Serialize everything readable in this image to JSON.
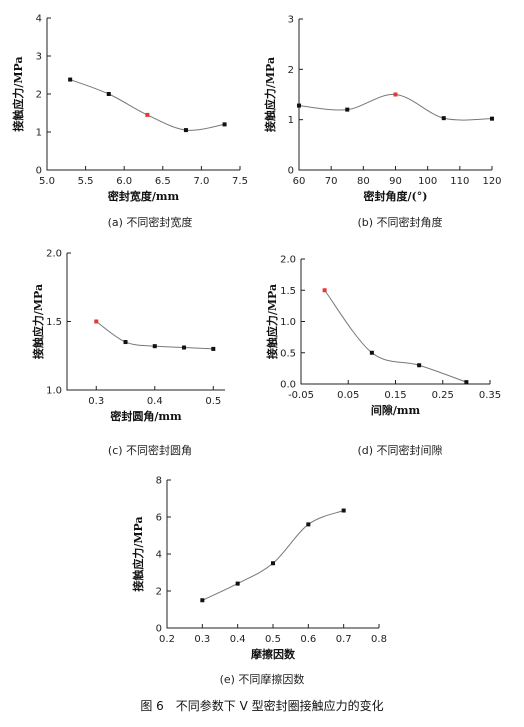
{
  "figure_caption": "图 6　不同参数下 V 型密封圈接触应力的变化",
  "chart_data": [
    {
      "id": "a",
      "type": "line",
      "caption": "(a)  不同密封宽度",
      "xlabel": "密封宽度/mm",
      "ylabel": "接触应力/MPa",
      "xlim": [
        5.0,
        7.5
      ],
      "ylim": [
        0,
        4
      ],
      "xticks": [
        "5.0",
        "5.5",
        "6.0",
        "6.5",
        "7.0",
        "7.5"
      ],
      "yticks": [
        "0",
        "1",
        "2",
        "3",
        "4"
      ],
      "x": [
        5.3,
        5.8,
        6.3,
        6.8,
        7.3
      ],
      "y": [
        2.38,
        2.0,
        1.45,
        1.05,
        1.2
      ],
      "point_colors": [
        "#111111",
        "#111111",
        "#e53935",
        "#111111",
        "#111111"
      ]
    },
    {
      "id": "b",
      "type": "line",
      "caption": "(b)  不同密封角度",
      "xlabel": "密封角度/(°)",
      "ylabel": "接触应力/MPa",
      "xlim": [
        60,
        120
      ],
      "ylim": [
        0,
        3
      ],
      "xticks": [
        "60",
        "70",
        "80",
        "90",
        "100",
        "110",
        "120"
      ],
      "yticks": [
        "0",
        "1",
        "2",
        "3"
      ],
      "x": [
        60,
        75,
        90,
        105,
        120
      ],
      "y": [
        1.28,
        1.2,
        1.5,
        1.03,
        1.02
      ],
      "point_colors": [
        "#111111",
        "#111111",
        "#e53935",
        "#111111",
        "#111111"
      ]
    },
    {
      "id": "c",
      "type": "line",
      "caption": "(c)  不同密封圆角",
      "xlabel": "密封圆角/mm",
      "ylabel": "接触应力/MPa",
      "xlim": [
        0.25,
        0.52
      ],
      "ylim": [
        1.0,
        2.0
      ],
      "xticks": [
        "0.3",
        "0.4",
        "0.5"
      ],
      "xtick_values": [
        0.3,
        0.4,
        0.5
      ],
      "yticks": [
        "1.0",
        "1.5",
        "2.0"
      ],
      "x": [
        0.3,
        0.35,
        0.4,
        0.45,
        0.5
      ],
      "y": [
        1.5,
        1.35,
        1.32,
        1.31,
        1.3
      ],
      "point_colors": [
        "#e53935",
        "#111111",
        "#111111",
        "#111111",
        "#111111"
      ]
    },
    {
      "id": "d",
      "type": "line",
      "caption": "(d)  不同密封间隙",
      "xlabel": "间隙/mm",
      "ylabel": "接触应力/MPa",
      "xlim": [
        -0.05,
        0.35
      ],
      "ylim": [
        0,
        2.0
      ],
      "xticks": [
        "-0.05",
        "0.05",
        "0.15",
        "0.25",
        "0.35"
      ],
      "yticks": [
        "0.0",
        "0.5",
        "1.0",
        "1.5",
        "2.0"
      ],
      "x": [
        0.0,
        0.1,
        0.2,
        0.3
      ],
      "y": [
        1.5,
        0.5,
        0.3,
        0.03
      ],
      "point_colors": [
        "#e53935",
        "#111111",
        "#111111",
        "#111111"
      ]
    },
    {
      "id": "e",
      "type": "line",
      "caption": "(e)  不同摩擦因数",
      "xlabel": "摩擦因数",
      "ylabel": "接触应力/MPa",
      "xlim": [
        0.2,
        0.8
      ],
      "ylim": [
        0,
        8
      ],
      "xticks": [
        "0.2",
        "0.3",
        "0.4",
        "0.5",
        "0.6",
        "0.7",
        "0.8"
      ],
      "yticks": [
        "0",
        "2",
        "4",
        "6",
        "8"
      ],
      "x": [
        0.3,
        0.4,
        0.5,
        0.6,
        0.7
      ],
      "y": [
        1.5,
        2.4,
        3.5,
        5.6,
        6.35
      ],
      "point_colors": [
        "#111111",
        "#111111",
        "#111111",
        "#111111",
        "#111111"
      ]
    }
  ]
}
